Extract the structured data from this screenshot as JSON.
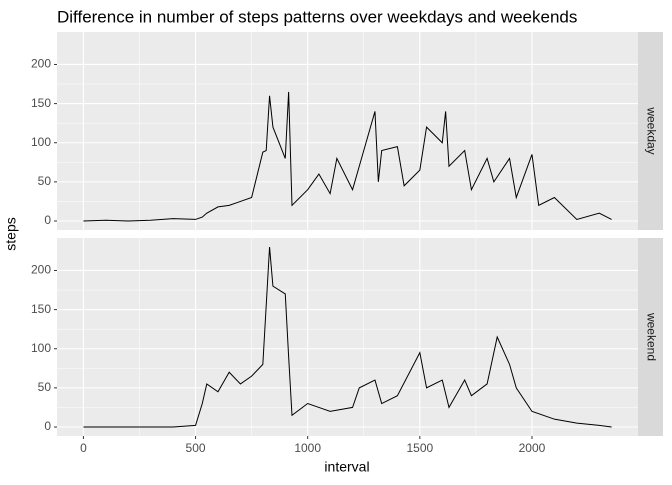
{
  "chart_data": {
    "type": "line",
    "title": "Difference in number of steps patterns over weekdays and weekends",
    "xlabel": "interval",
    "ylabel": "steps",
    "xlim": [
      -117.75,
      2472.75
    ],
    "xticks": [
      0,
      500,
      1000,
      1500,
      2000
    ],
    "ylim": [
      -11.5,
      241.5
    ],
    "yticks": [
      0,
      50,
      100,
      150,
      200
    ],
    "grid": true,
    "color": "#000000",
    "facets": [
      {
        "name": "weekday",
        "x": [
          0,
          100,
          200,
          300,
          400,
          500,
          530,
          550,
          600,
          650,
          700,
          750,
          800,
          815,
          830,
          845,
          900,
          915,
          930,
          1000,
          1050,
          1100,
          1130,
          1200,
          1230,
          1300,
          1315,
          1330,
          1400,
          1430,
          1500,
          1530,
          1600,
          1615,
          1630,
          1700,
          1730,
          1800,
          1830,
          1900,
          1930,
          2000,
          2030,
          2100,
          2200,
          2300,
          2355
        ],
        "values": [
          0,
          1,
          0,
          1,
          3,
          2,
          5,
          10,
          18,
          20,
          25,
          30,
          88,
          90,
          160,
          120,
          80,
          165,
          20,
          40,
          60,
          35,
          80,
          40,
          70,
          140,
          50,
          90,
          95,
          45,
          65,
          120,
          100,
          140,
          70,
          90,
          40,
          80,
          50,
          80,
          30,
          85,
          20,
          30,
          2,
          10,
          2
        ]
      },
      {
        "name": "weekend",
        "x": [
          0,
          100,
          200,
          300,
          400,
          500,
          530,
          550,
          600,
          650,
          700,
          750,
          800,
          830,
          845,
          900,
          915,
          930,
          1000,
          1050,
          1100,
          1200,
          1230,
          1300,
          1330,
          1400,
          1500,
          1530,
          1600,
          1630,
          1700,
          1730,
          1800,
          1845,
          1900,
          1930,
          2000,
          2100,
          2200,
          2300,
          2355
        ],
        "values": [
          0,
          0,
          0,
          0,
          0,
          2,
          30,
          55,
          45,
          70,
          55,
          65,
          80,
          230,
          180,
          170,
          90,
          15,
          30,
          25,
          20,
          25,
          50,
          60,
          30,
          40,
          95,
          50,
          60,
          25,
          60,
          40,
          55,
          115,
          80,
          50,
          20,
          10,
          5,
          2,
          0
        ]
      }
    ]
  }
}
